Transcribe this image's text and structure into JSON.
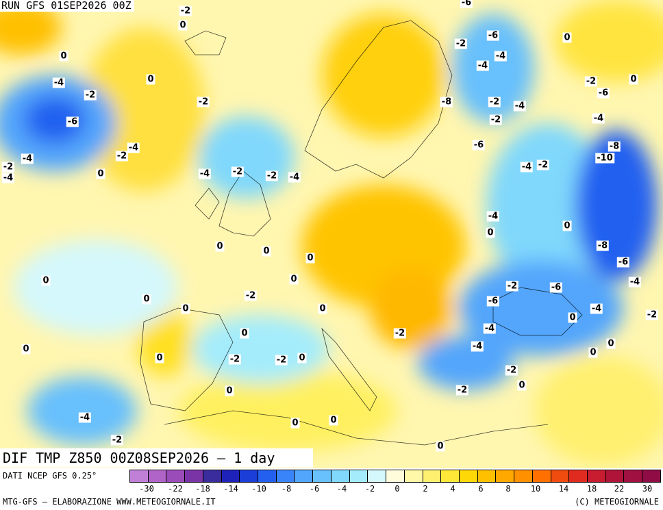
{
  "run_label": "RUN GFS 01SEP2026 00Z",
  "title": "DIF TMP Z850 00Z08SEP2026 — 1 day",
  "source": "DATI NCEP GFS 0.25°",
  "credit_left": "MTG-GFS — ELABORAZIONE WWW.METEOGIORNALE.IT",
  "credit_right": "(C) METEOGIORNALE",
  "colorbar": {
    "colors": [
      "#c080d8",
      "#b064c8",
      "#9a4cb8",
      "#7a34a6",
      "#3a2c9c",
      "#1e22b8",
      "#1c3ed8",
      "#2460f0",
      "#3a84fa",
      "#52a6fc",
      "#68c0fc",
      "#80d8fc",
      "#a4ecfc",
      "#d4f8fc",
      "#fffcdc",
      "#fff8a8",
      "#fff070",
      "#ffe838",
      "#ffd808",
      "#ffc000",
      "#ffa800",
      "#ff9000",
      "#ff7000",
      "#f04c10",
      "#e02c20",
      "#c81c30",
      "#b01438",
      "#a01040",
      "#900c44"
    ],
    "ticks": [
      "-30",
      "-22",
      "-18",
      "-14",
      "-10",
      "-8",
      "-6",
      "-4",
      "-2",
      "0",
      "2",
      "4",
      "6",
      "8",
      "10",
      "14",
      "18",
      "22",
      "30"
    ]
  },
  "labels": [
    {
      "text": "-2"
    },
    {
      "text": "0"
    },
    {
      "text": "-6"
    },
    {
      "text": "0"
    },
    {
      "text": "-6"
    },
    {
      "text": "-2"
    },
    {
      "text": "0"
    },
    {
      "text": "-4"
    },
    {
      "text": "-4"
    },
    {
      "text": "-2"
    },
    {
      "text": "0"
    },
    {
      "text": "-4"
    },
    {
      "text": "-2"
    },
    {
      "text": "-6"
    },
    {
      "text": "-2"
    },
    {
      "text": "0"
    },
    {
      "text": "-2"
    },
    {
      "text": "-8"
    },
    {
      "text": "-4"
    },
    {
      "text": "-6"
    },
    {
      "text": "-2"
    },
    {
      "text": "-4"
    },
    {
      "text": "-8"
    },
    {
      "text": "-4"
    },
    {
      "text": "-2"
    },
    {
      "text": "-4"
    },
    {
      "text": "-6"
    },
    {
      "text": "-2"
    },
    {
      "text": "0"
    },
    {
      "text": "-4"
    },
    {
      "text": "-2"
    },
    {
      "text": "-4"
    },
    {
      "text": "-2"
    },
    {
      "text": "-4"
    },
    {
      "text": "-10"
    },
    {
      "text": "-4"
    },
    {
      "text": "-2"
    },
    {
      "text": "0"
    },
    {
      "text": "-4"
    },
    {
      "text": "0"
    },
    {
      "text": "0"
    },
    {
      "text": "0"
    },
    {
      "text": "-8"
    },
    {
      "text": "-6"
    },
    {
      "text": "0"
    },
    {
      "text": "0"
    },
    {
      "text": "0"
    },
    {
      "text": "-2"
    },
    {
      "text": "-2"
    },
    {
      "text": "-6"
    },
    {
      "text": "-4"
    },
    {
      "text": "0"
    },
    {
      "text": "0"
    },
    {
      "text": "0"
    },
    {
      "text": "-6"
    },
    {
      "text": "-4"
    },
    {
      "text": "0"
    },
    {
      "text": "-2"
    },
    {
      "text": "-4"
    },
    {
      "text": "0"
    },
    {
      "text": "-2"
    },
    {
      "text": "0"
    },
    {
      "text": "0"
    },
    {
      "text": "-2"
    },
    {
      "text": "-4"
    },
    {
      "text": "0"
    },
    {
      "text": "-2"
    },
    {
      "text": "0"
    },
    {
      "text": "-2"
    },
    {
      "text": "0"
    },
    {
      "text": "0"
    },
    {
      "text": "-2"
    },
    {
      "text": "-4"
    },
    {
      "text": "0"
    },
    {
      "text": "0"
    },
    {
      "text": "-2"
    },
    {
      "text": "0"
    },
    {
      "text": "0"
    }
  ]
}
